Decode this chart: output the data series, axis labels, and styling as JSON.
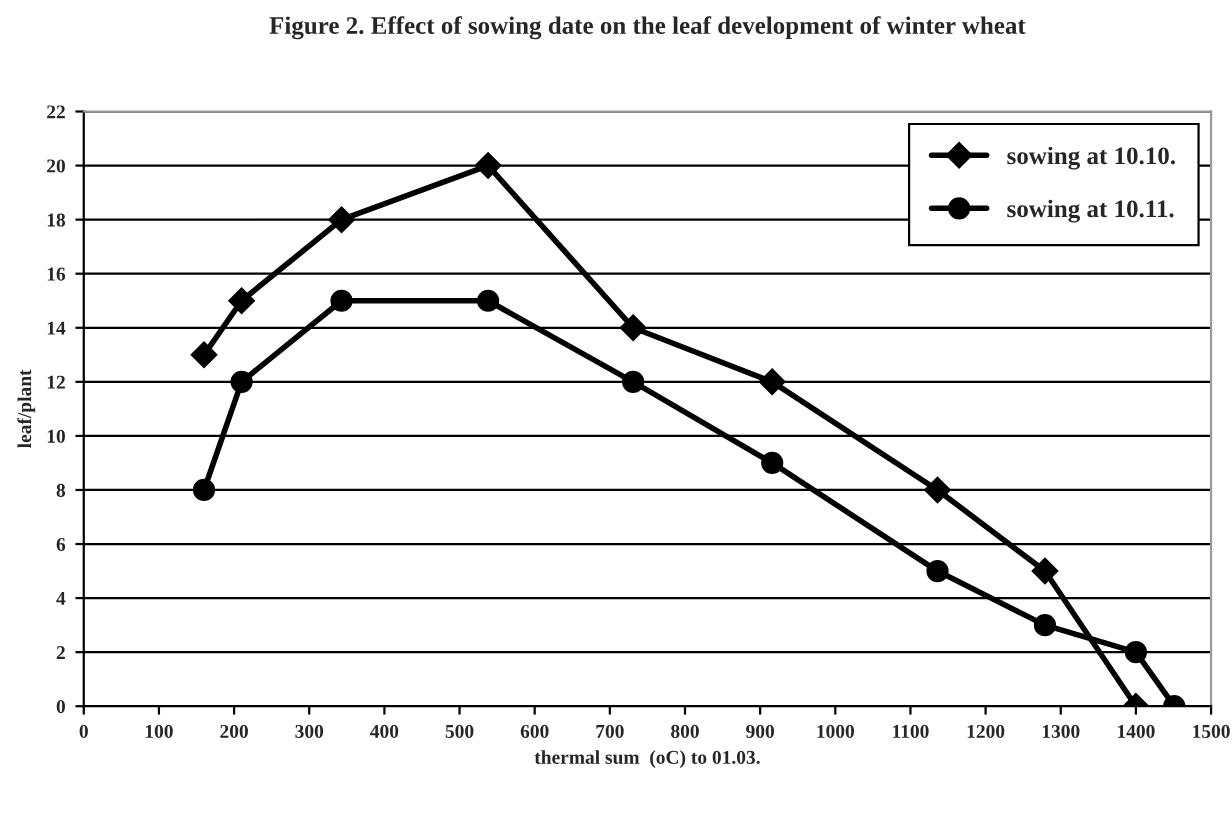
{
  "chart_data": {
    "type": "line",
    "title": "Figure 2. Effect of sowing date on the leaf development of winter wheat",
    "xlabel": "thermal sum  (oC) to 01.03.",
    "ylabel": "leaf/plant",
    "series": [
      {
        "name": "sowing at 10.10.",
        "color": "#000000",
        "marker": "diamond",
        "x": [
          160,
          210,
          343,
          538,
          731,
          916,
          1136,
          1279,
          1400
        ],
        "values": [
          13,
          15,
          18,
          20,
          14,
          12,
          8,
          5,
          0
        ]
      },
      {
        "name": "sowing at 10.11.",
        "color": "#000000",
        "marker": "circle",
        "x": [
          160,
          210,
          343,
          538,
          731,
          916,
          1136,
          1279,
          1400,
          1451
        ],
        "values": [
          8,
          12,
          15,
          15,
          12,
          9,
          5,
          3,
          2,
          0
        ]
      }
    ],
    "xlim": [
      0,
      1500
    ],
    "xticks": [
      0,
      100,
      200,
      300,
      400,
      500,
      600,
      700,
      800,
      900,
      1000,
      1100,
      1200,
      1300,
      1400,
      1500
    ],
    "ylim": [
      0,
      22
    ],
    "yticks": [
      0,
      2,
      4,
      6,
      8,
      10,
      12,
      14,
      16,
      18,
      20,
      22
    ],
    "grid": "y",
    "legend": "top right",
    "line_style": "solid"
  }
}
